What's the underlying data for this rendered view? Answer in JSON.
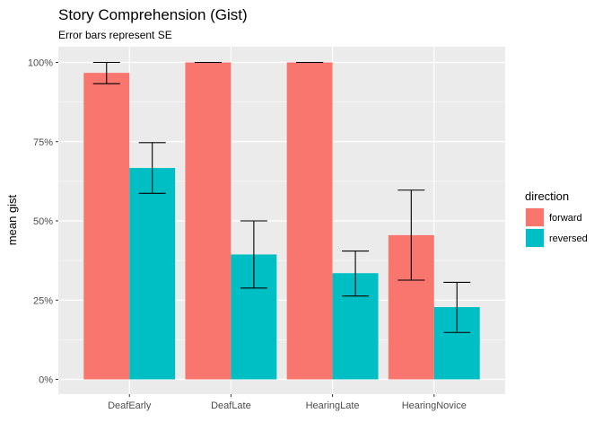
{
  "chart_data": {
    "type": "bar",
    "title": "Story Comprehension (Gist)",
    "subtitle": "Error bars represent SE",
    "xlabel": "",
    "ylabel": "mean gist",
    "ylim": [
      0,
      1.05
    ],
    "yticks": [
      0,
      0.25,
      0.5,
      0.75,
      1.0
    ],
    "ytick_labels": [
      "0%",
      "25%",
      "50%",
      "75%",
      "100%"
    ],
    "categories": [
      "DeafEarly",
      "DeafLate",
      "HearingLate",
      "HearingNovice"
    ],
    "legend_title": "direction",
    "legend_position": "right",
    "grid": true,
    "series": [
      {
        "name": "forward",
        "color": "#F8766D",
        "values": [
          0.967,
          1.0,
          1.0,
          0.455
        ],
        "error_low": [
          0.933,
          1.0,
          1.0,
          0.313
        ],
        "error_high": [
          1.0,
          1.0,
          1.0,
          0.597
        ]
      },
      {
        "name": "reversed",
        "color": "#00BFC4",
        "values": [
          0.667,
          0.394,
          0.335,
          0.228
        ],
        "error_low": [
          0.587,
          0.288,
          0.263,
          0.148
        ],
        "error_high": [
          0.747,
          0.5,
          0.405,
          0.306
        ]
      }
    ]
  }
}
